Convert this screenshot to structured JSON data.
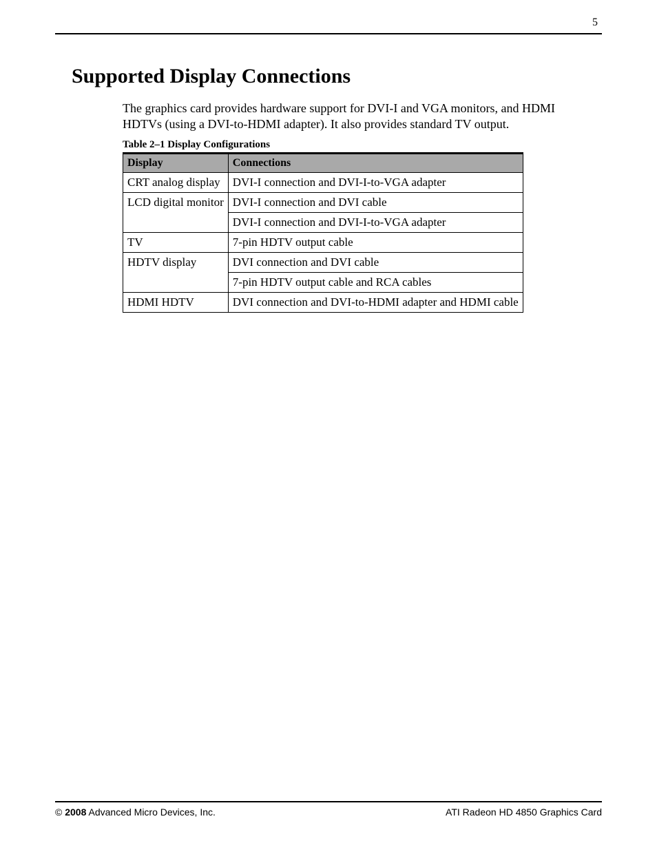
{
  "page_number": "5",
  "heading": "Supported Display Connections",
  "intro": "The graphics card provides hardware support for DVI-I and VGA monitors, and HDMI HDTVs (using a DVI-to-HDMI adapter). It also provides standard TV output.",
  "table": {
    "caption": "Table  2–1 Display Configurations",
    "columns": [
      "Display",
      "Connections"
    ],
    "rows": [
      {
        "display": "CRT analog display",
        "connection": "DVI-I connection and DVI-I-to-VGA adapter",
        "continues": false
      },
      {
        "display": "LCD digital monitor",
        "connection": "DVI-I connection and DVI cable",
        "continues": true
      },
      {
        "display": "",
        "connection": "DVI-I connection and DVI-I-to-VGA adapter",
        "continues": false
      },
      {
        "display": "TV",
        "connection": "7-pin HDTV output cable",
        "continues": false
      },
      {
        "display": "HDTV display",
        "connection": "DVI connection and DVI cable",
        "continues": true
      },
      {
        "display": "",
        "connection": "7-pin HDTV output cable and RCA cables",
        "continues": false
      },
      {
        "display": "HDMI HDTV",
        "connection": "DVI connection and DVI-to-HDMI adapter and HDMI cable",
        "continues": false
      }
    ]
  },
  "footer": {
    "copyright_symbol": "©",
    "year": "2008",
    "company": "Advanced Micro Devices, Inc.",
    "product": "ATI Radeon HD 4850 Graphics Card"
  }
}
